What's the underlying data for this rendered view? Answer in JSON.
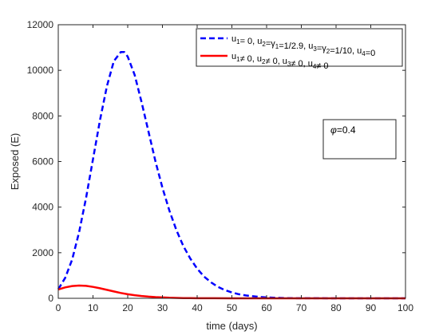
{
  "chart_data": {
    "type": "line",
    "xlabel": "time (days)",
    "ylabel": "Exposed (E)",
    "xlim": [
      0,
      100
    ],
    "ylim": [
      0,
      12000
    ],
    "x_ticks": [
      0,
      10,
      20,
      30,
      40,
      50,
      60,
      70,
      80,
      90,
      100
    ],
    "y_ticks": [
      0,
      2000,
      4000,
      6000,
      8000,
      10000,
      12000
    ],
    "grid": false,
    "legend_position": "top-right",
    "series": [
      {
        "name": "u1= 0, u2=γ1=1/2.9, u3=γ2=1/10, u4=0",
        "legend_parts": [
          {
            "t": "u",
            "sub": "1"
          },
          {
            "t": "= 0, u",
            "sub": "2"
          },
          {
            "t": "=γ",
            "sub": "1"
          },
          {
            "t": "=1/2.9, u",
            "sub": "3"
          },
          {
            "t": "=γ",
            "sub": "2"
          },
          {
            "t": "=1/10, u",
            "sub": "4"
          },
          {
            "t": "=0",
            "sub": ""
          }
        ],
        "color": "#0000ff",
        "style": "dashed",
        "x": [
          0,
          2,
          4,
          6,
          8,
          10,
          12,
          14,
          16,
          18,
          19,
          20,
          22,
          24,
          26,
          28,
          30,
          32,
          34,
          36,
          38,
          40,
          42,
          44,
          46,
          48,
          50,
          52,
          54,
          56,
          58,
          60,
          62,
          64,
          66,
          68,
          70,
          75,
          80,
          85,
          90,
          95,
          100
        ],
        "y": [
          400,
          900,
          1700,
          2900,
          4400,
          6100,
          7800,
          9300,
          10400,
          10800,
          10800,
          10600,
          9800,
          8600,
          7300,
          6000,
          4850,
          3850,
          3000,
          2300,
          1750,
          1300,
          950,
          700,
          500,
          360,
          260,
          180,
          125,
          90,
          60,
          40,
          28,
          18,
          12,
          8,
          5,
          2,
          0,
          0,
          0,
          0,
          0
        ]
      },
      {
        "name": "u1≠ 0, u2≠ 0, u3≠ 0, u4≠ 0",
        "legend_parts": [
          {
            "t": "u",
            "sub": "1"
          },
          {
            "t": "≠ 0, u",
            "sub": "2"
          },
          {
            "t": "≠ 0, u",
            "sub": "3"
          },
          {
            "t": "≠ 0, u",
            "sub": "4"
          },
          {
            "t": "≠ 0",
            "sub": ""
          }
        ],
        "color": "#ff0000",
        "style": "solid",
        "x": [
          0,
          2,
          4,
          6,
          8,
          10,
          12,
          14,
          16,
          18,
          20,
          22,
          24,
          26,
          28,
          30,
          32,
          34,
          36,
          38,
          40,
          45,
          50,
          60,
          70,
          80,
          90,
          100
        ],
        "y": [
          390,
          480,
          540,
          560,
          545,
          500,
          440,
          370,
          300,
          235,
          180,
          135,
          100,
          72,
          52,
          37,
          26,
          18,
          12,
          8,
          5,
          2,
          1,
          0,
          0,
          0,
          0,
          0
        ]
      }
    ],
    "annotation": {
      "symbol": "φ",
      "text": "=0.4"
    }
  }
}
